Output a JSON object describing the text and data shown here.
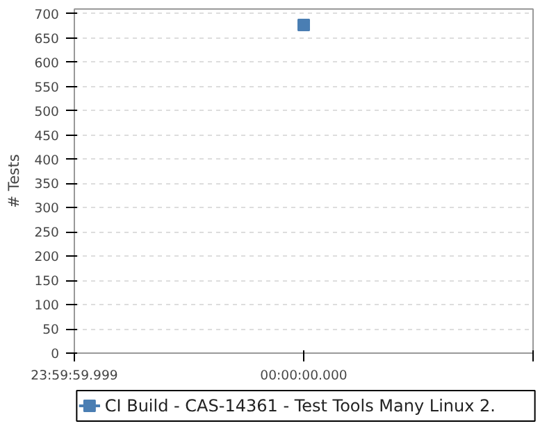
{
  "chart_data": {
    "type": "line",
    "ylabel": "# Tests",
    "categories": [
      "23:59:59.999",
      "00:00:00.000",
      null
    ],
    "series": [
      {
        "name": "CI Build - CAS-14361 - Test Tools Many Linux 2.",
        "color": "#4a7eb3",
        "values": [
          null,
          677,
          null
        ]
      }
    ],
    "ylim": [
      0,
      710
    ],
    "yticks": [
      0,
      50,
      100,
      150,
      200,
      250,
      300,
      350,
      400,
      450,
      500,
      550,
      600,
      650,
      700
    ],
    "grid": "y",
    "legend": "bottom",
    "marker": "square"
  }
}
